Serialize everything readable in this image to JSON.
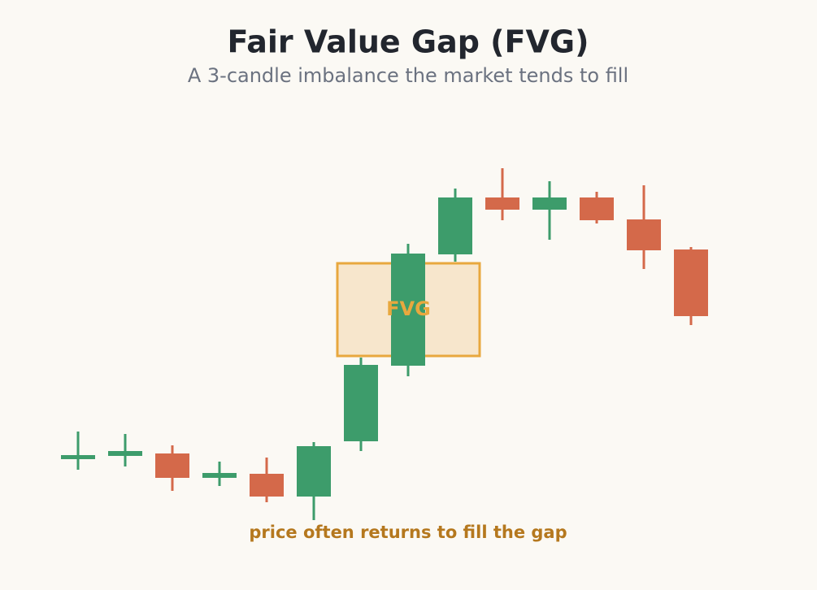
{
  "chart_data": {
    "type": "candlestick",
    "title": "Fair Value Gap (FVG)",
    "subtitle": "A 3-candle imbalance the market tends to fill",
    "annotation": "price often returns to fill the gap",
    "ylim": [
      0,
      90
    ],
    "up_color": "#3d9c6b",
    "down_color": "#d4694a",
    "open": [
      17,
      17.8,
      18.4,
      12.4,
      13.4,
      7.8,
      21.4,
      40,
      67.4,
      81.4,
      78.4,
      81.4,
      76,
      68.6
    ],
    "high": [
      23.8,
      23.2,
      20.4,
      16.4,
      17.4,
      21.2,
      42,
      70,
      83.6,
      88.6,
      85.4,
      82.8,
      84.4,
      69.2
    ],
    "low": [
      14.4,
      15.2,
      9.2,
      10.4,
      6.4,
      2,
      19,
      37.4,
      65.6,
      75.8,
      71,
      75,
      63.8,
      50
    ],
    "close": [
      18,
      19,
      12.4,
      13.6,
      7.8,
      20.2,
      40.2,
      67.6,
      81.4,
      78.4,
      81.4,
      75.8,
      68.4,
      52.2
    ],
    "zone": {
      "label": "FVG",
      "low": 42.4,
      "high": 65.2,
      "color": "#e8a83e"
    }
  }
}
